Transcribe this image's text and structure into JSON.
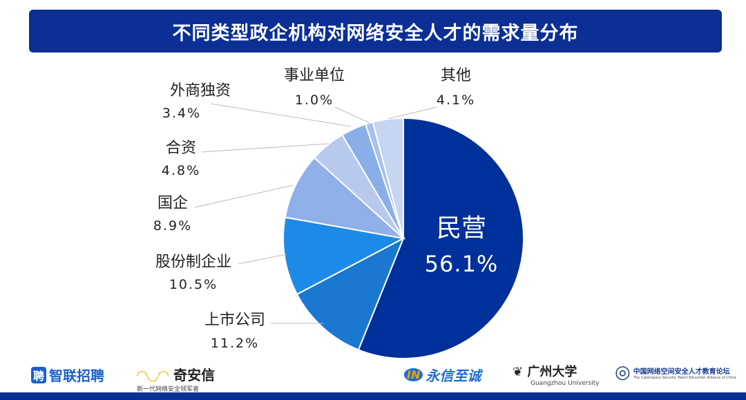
{
  "chart_data": {
    "type": "pie",
    "title": "不同类型政企机构对网络安全人才的需求量分布",
    "categories": [
      "民营",
      "上市公司",
      "股份制企业",
      "国企",
      "合资",
      "外商独资",
      "事业单位",
      "其他"
    ],
    "values": [
      56.1,
      11.2,
      10.5,
      8.9,
      4.8,
      3.4,
      1.0,
      4.1
    ],
    "labels": [
      "56.1%",
      "11.2%",
      "10.5%",
      "8.9%",
      "4.8%",
      "3.4%",
      "1.0%",
      "4.1%"
    ],
    "colors": [
      "#00309a",
      "#1a78d0",
      "#1e8ae8",
      "#8fb0e8",
      "#b8c9ee",
      "#8aaee8",
      "#a8c0ee",
      "#c5d5f2"
    ],
    "start": "12 o'clock, clockwise",
    "legend": "none"
  },
  "footer": {
    "logos": [
      "智联招聘",
      "奇安信",
      "永信至诚",
      "广州大学",
      "Guangzhou University",
      "中国网络空间安全人才教育论坛",
      "The Cyberspace Security Talent Education Alliance of China"
    ],
    "qianxin_tagline": "新一代网络安全领军者"
  }
}
